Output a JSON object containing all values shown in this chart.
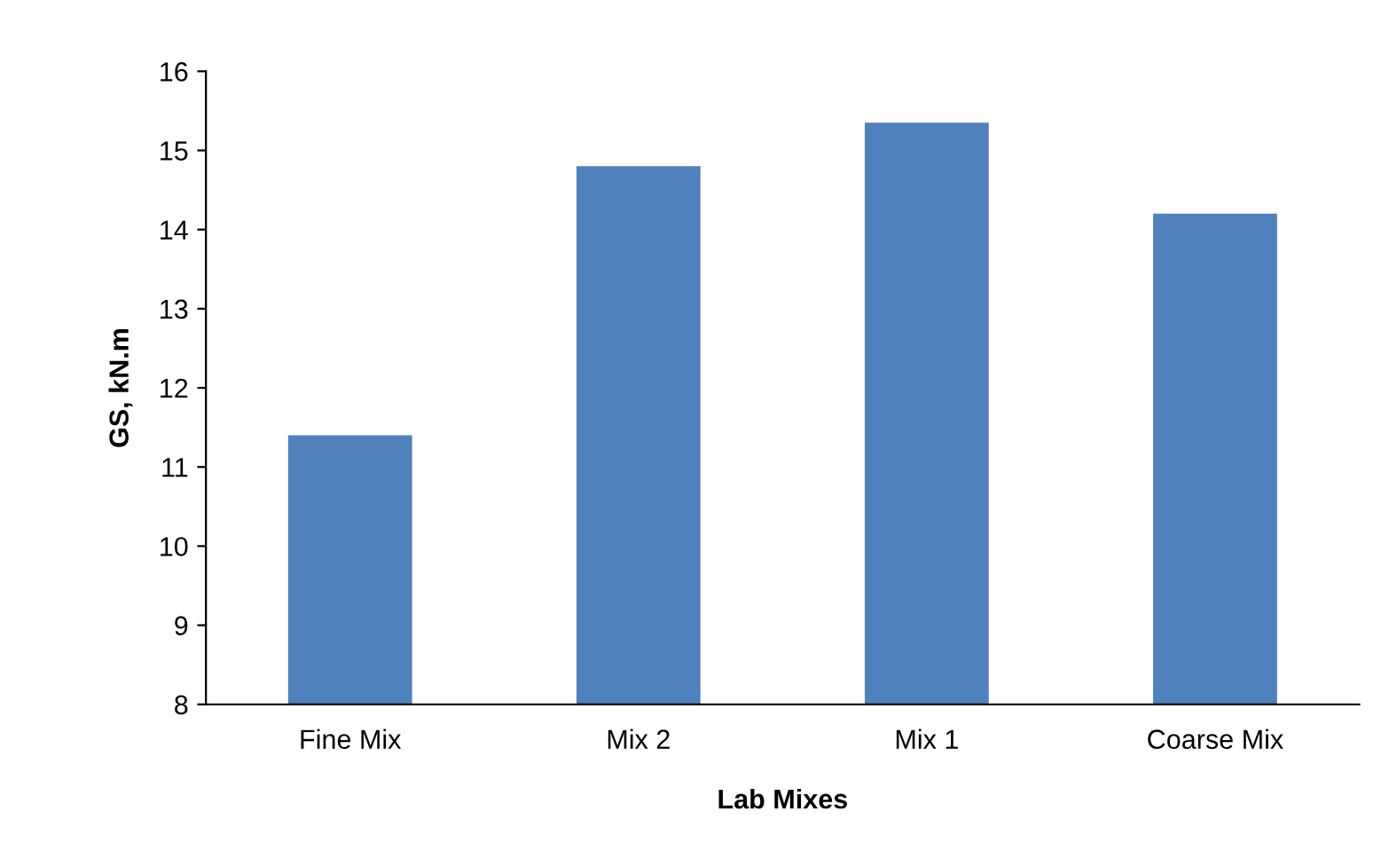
{
  "chart_data": {
    "type": "bar",
    "xlabel": "Lab Mixes",
    "ylabel": "GS, kN.m",
    "categories": [
      "Fine Mix",
      "Mix 2",
      "Mix 1",
      "Coarse Mix"
    ],
    "values": [
      11.4,
      14.8,
      15.35,
      14.2
    ],
    "color": "#4f81bd",
    "ylim": [
      8,
      16
    ],
    "yticks": [
      8,
      9,
      10,
      11,
      12,
      13,
      14,
      15,
      16
    ],
    "grid": false,
    "legend": false
  }
}
